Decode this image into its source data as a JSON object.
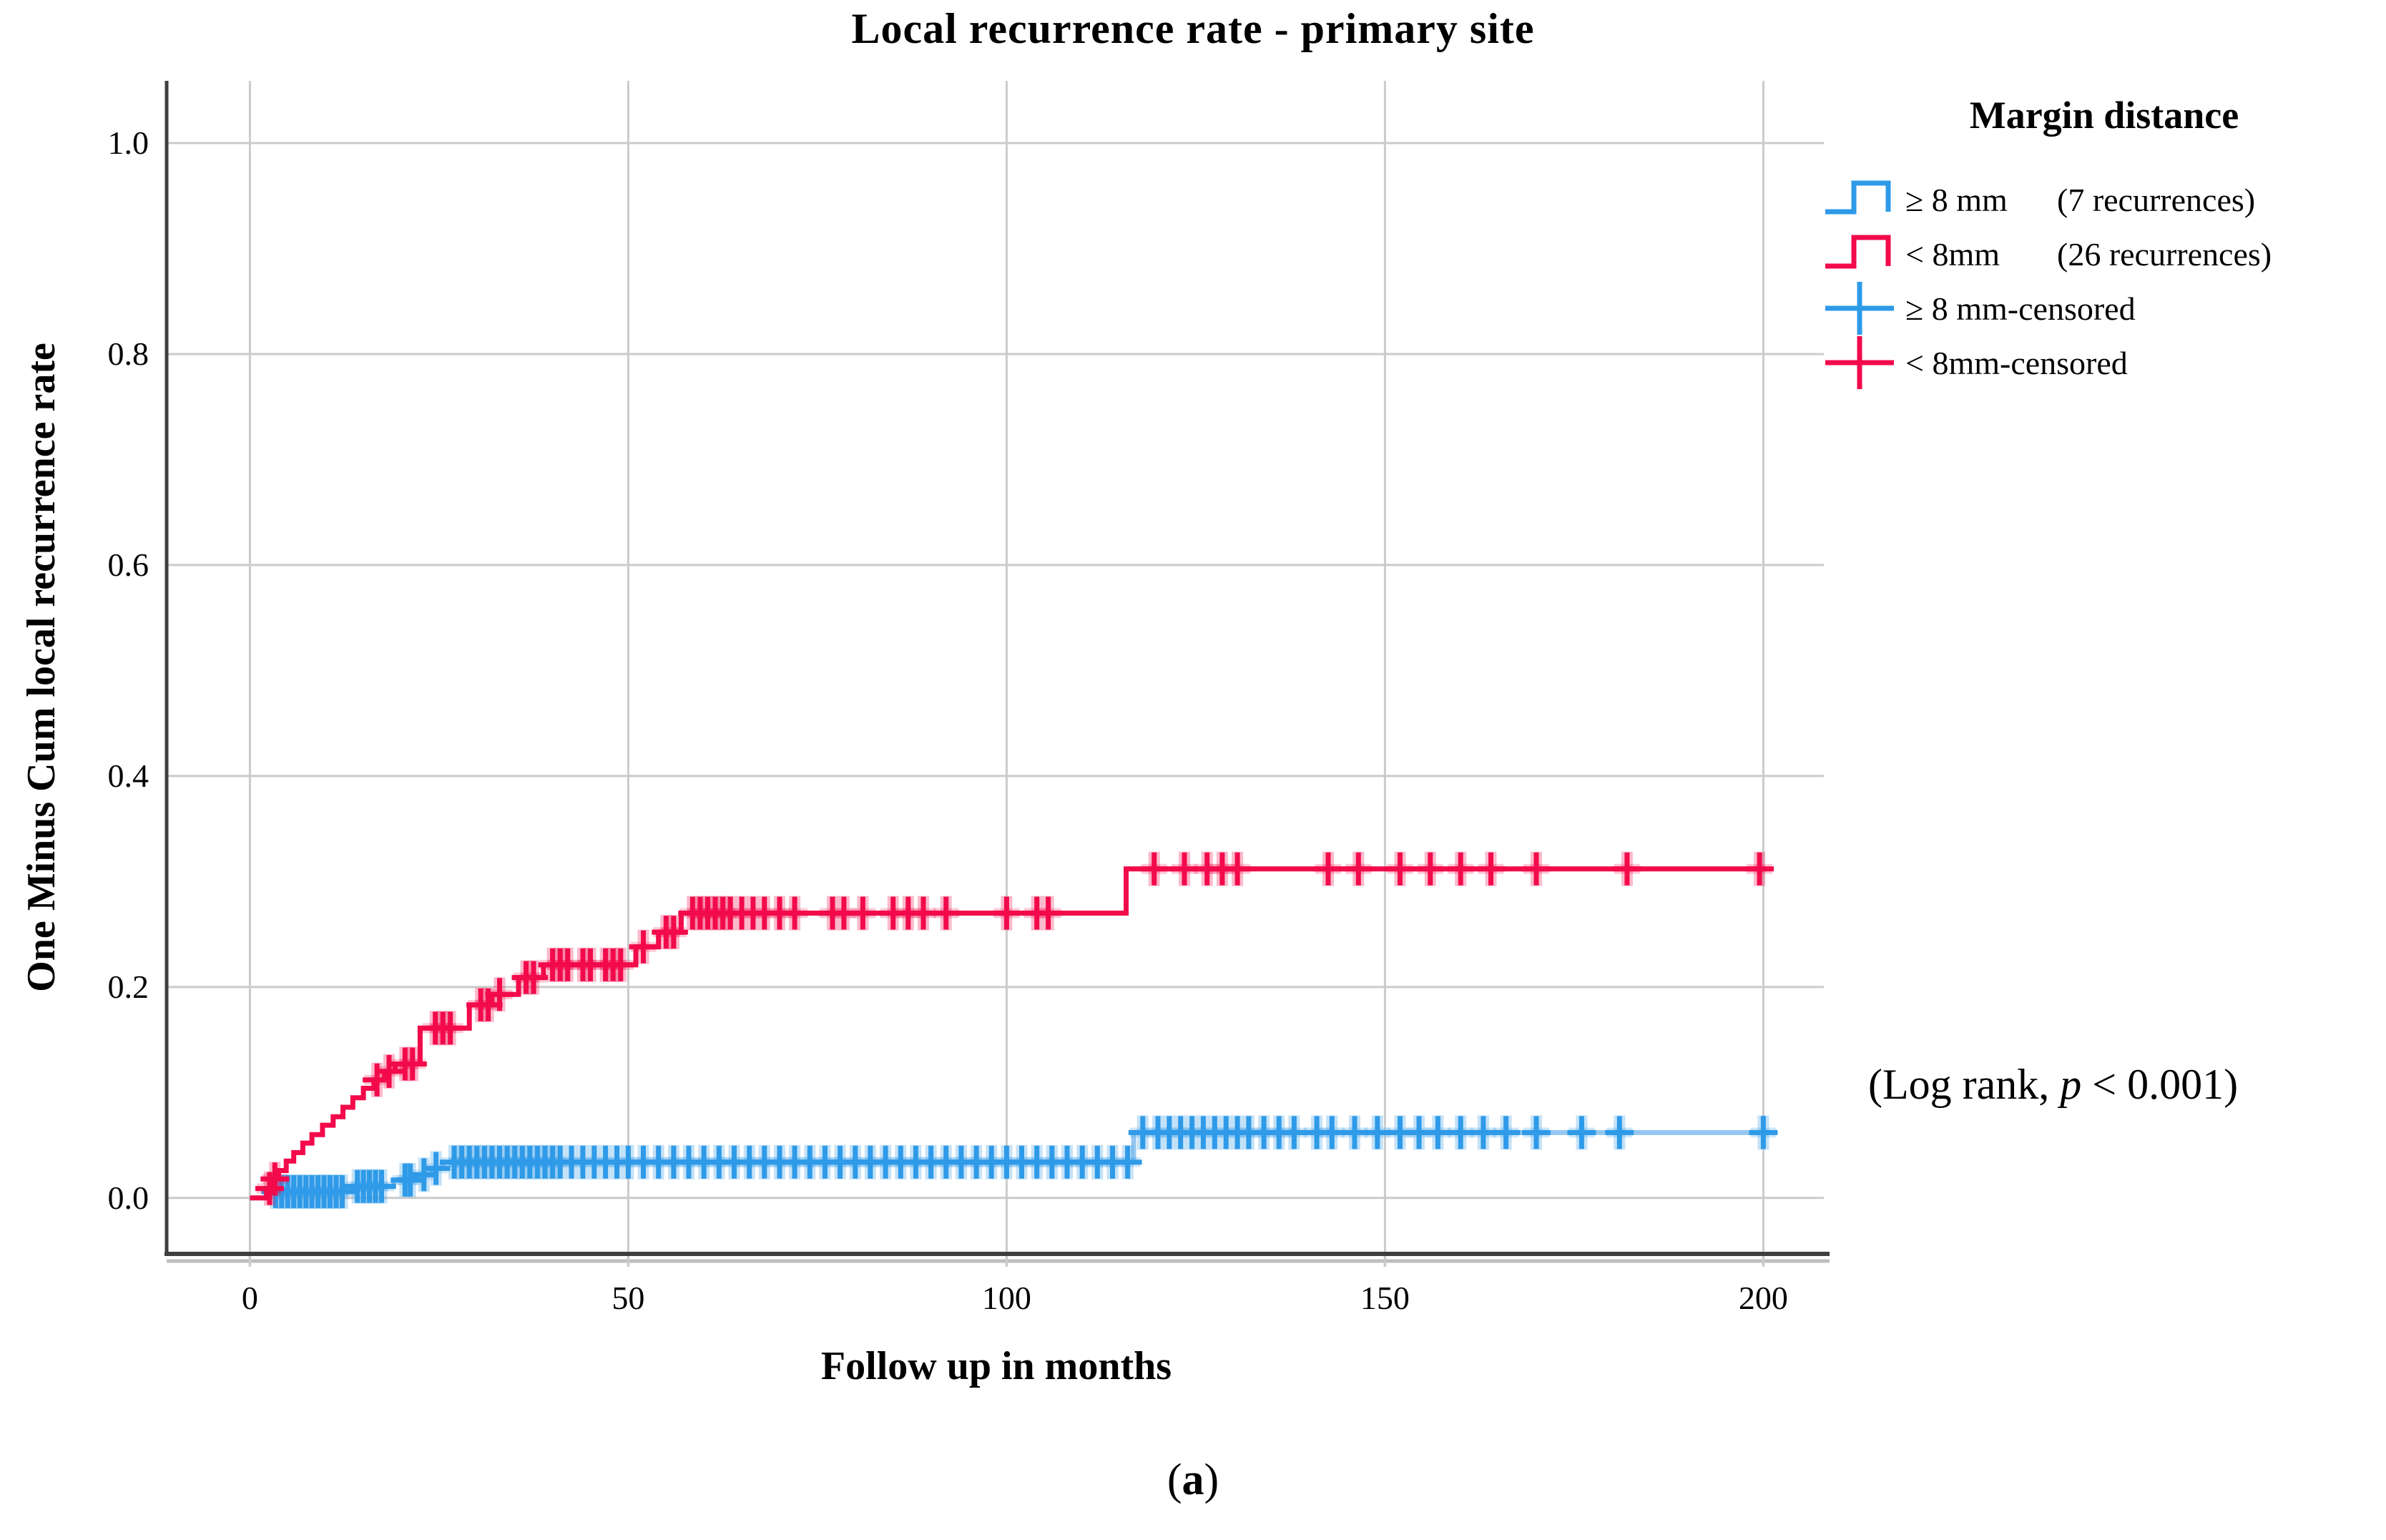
{
  "title": "Local recurrence rate - primary site",
  "axes": {
    "y_label": "One Minus Cum local recurrence rate",
    "x_label": "Follow up in months"
  },
  "legend": {
    "title": "Margin distance",
    "items": [
      {
        "id": "ge8mm-line",
        "type": "step",
        "color": "#2E9AE8",
        "label": "≥ 8 mm",
        "count": "(7 recurrences)"
      },
      {
        "id": "lt8mm-line",
        "type": "step",
        "color": "#F20A4B",
        "label": "< 8mm",
        "count": "(26 recurrences)"
      },
      {
        "id": "ge8mm-censored",
        "type": "plus",
        "color": "#2E9AE8",
        "label": "≥ 8 mm-censored",
        "count": ""
      },
      {
        "id": "lt8mm-censored",
        "type": "plus",
        "color": "#F20A4B",
        "label": "< 8mm-censored",
        "count": ""
      }
    ]
  },
  "annotation": {
    "prefix": "(Log rank, ",
    "p_symbol": "p",
    "suffix": " < 0.001)"
  },
  "caption": {
    "open": "(",
    "letter": "a",
    "close": ")"
  },
  "colors": {
    "red": "#F20A4B",
    "blue": "#2E9AE8",
    "blue_line": "#96C7F1",
    "grid": "#CBCBCB",
    "axis": "#3F3F3F",
    "axis_shadow": "#BEBEBE",
    "text": "#000000",
    "background": "#FFFFFF"
  },
  "chart_data": {
    "type": "line",
    "subtype": "kaplan-meier-step",
    "title": "Local recurrence rate - primary site",
    "xlabel": "Follow up in months",
    "ylabel": "One Minus Cum local recurrence rate",
    "x_ticks": [
      0,
      50,
      100,
      150,
      200
    ],
    "x_tick_labels": [
      "0",
      "50",
      "100",
      "150",
      "200"
    ],
    "y_ticks": [
      1.0,
      0.8,
      0.6,
      0.4,
      0.2,
      0.0
    ],
    "y_tick_labels": [
      "1.0",
      "0.8",
      "0.6",
      "0.4",
      "0.2",
      "0.0"
    ],
    "x_range": [
      -11,
      208
    ],
    "y_range": [
      -0.053,
      1.059
    ],
    "grid": true,
    "legend_position": "top-right-outside",
    "annotation": "(Log rank, p < 0.001)",
    "series": [
      {
        "id": "ge8mm",
        "name": "≥ 8 mm",
        "recurrences": 7,
        "line_color": "#96C7F1",
        "censor_color": "#2E9AE8",
        "start": [
          0,
          0
        ],
        "steps": [
          [
            2.2,
            0.006
          ],
          [
            13.5,
            0.011
          ],
          [
            19,
            0.017
          ],
          [
            22,
            0.022
          ],
          [
            24,
            0.028
          ],
          [
            25.5,
            0.034
          ],
          [
            116.8,
            0.062
          ]
        ],
        "end": 200.6,
        "censor_times": [
          3.4,
          4.2,
          5,
          5.8,
          6.6,
          7.4,
          8.2,
          9,
          9.8,
          10.6,
          11.4,
          12.2,
          14.2,
          15,
          15.8,
          16.6,
          17.4,
          20.5,
          21.2,
          23,
          24.6,
          27,
          28,
          29,
          30,
          31,
          32,
          33,
          34,
          35,
          36,
          37,
          38,
          39,
          40,
          41,
          42.5,
          44,
          45.5,
          47,
          48.5,
          50,
          52,
          54,
          56,
          58,
          60,
          62,
          64,
          66,
          68,
          70,
          72,
          74,
          76,
          78,
          80,
          82,
          84,
          86,
          88,
          90,
          92,
          94,
          96,
          98,
          100,
          102,
          104,
          106,
          108,
          110,
          112,
          114,
          116,
          118,
          120,
          121.5,
          123,
          124.5,
          126,
          127.5,
          129,
          130.5,
          132,
          134,
          136,
          138,
          141,
          143,
          146,
          149,
          152,
          154.5,
          157,
          160,
          163,
          166,
          170,
          176,
          181,
          200
        ]
      },
      {
        "id": "lt8mm",
        "name": "< 8mm",
        "recurrences": 26,
        "line_color": "#F20A4B",
        "censor_color": "#F20A4B",
        "start": [
          0,
          0
        ],
        "steps": [
          [
            2.2,
            0.009
          ],
          [
            3,
            0.018
          ],
          [
            3.8,
            0.026
          ],
          [
            4.8,
            0.035
          ],
          [
            5.8,
            0.043
          ],
          [
            7,
            0.052
          ],
          [
            8.2,
            0.06
          ],
          [
            9.6,
            0.069
          ],
          [
            11,
            0.077
          ],
          [
            12.3,
            0.086
          ],
          [
            13.6,
            0.095
          ],
          [
            15,
            0.104
          ],
          [
            16.4,
            0.112
          ],
          [
            17.8,
            0.12
          ],
          [
            19.2,
            0.127
          ],
          [
            22.5,
            0.161
          ],
          [
            29,
            0.183
          ],
          [
            32,
            0.193
          ],
          [
            35.5,
            0.209
          ],
          [
            38.8,
            0.221
          ],
          [
            51,
            0.238
          ],
          [
            54,
            0.252
          ],
          [
            57,
            0.27
          ],
          [
            115.8,
            0.312
          ]
        ],
        "end": 200.3,
        "censor_times": [
          2.6,
          3.3,
          16.8,
          18.4,
          20.5,
          21.5,
          24.5,
          25.5,
          26.5,
          30.5,
          31.5,
          33,
          36.5,
          37.5,
          40,
          41,
          42,
          44,
          45,
          47,
          48,
          49,
          52,
          55,
          56,
          58.5,
          59.5,
          60.5,
          61.5,
          62.5,
          63.5,
          65,
          66.5,
          68,
          70,
          72,
          77,
          78.5,
          81,
          85,
          87,
          89,
          92,
          100,
          104,
          105.5,
          119.5,
          123.5,
          126.5,
          128.5,
          130.5,
          142.5,
          146.5,
          152,
          156,
          160,
          164,
          170,
          182,
          199.5
        ]
      }
    ]
  }
}
